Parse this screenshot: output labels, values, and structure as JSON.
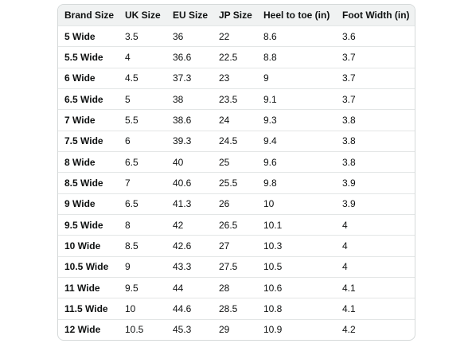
{
  "table": {
    "headers": [
      "Brand Size",
      "UK Size",
      "EU Size",
      "JP Size",
      "Heel to toe (in)",
      "Foot Width (in)"
    ],
    "rows": [
      [
        "5 Wide",
        "3.5",
        "36",
        "22",
        "8.6",
        "3.6"
      ],
      [
        "5.5 Wide",
        "4",
        "36.6",
        "22.5",
        "8.8",
        "3.7"
      ],
      [
        "6 Wide",
        "4.5",
        "37.3",
        "23",
        "9",
        "3.7"
      ],
      [
        "6.5 Wide",
        "5",
        "38",
        "23.5",
        "9.1",
        "3.7"
      ],
      [
        "7 Wide",
        "5.5",
        "38.6",
        "24",
        "9.3",
        "3.8"
      ],
      [
        "7.5 Wide",
        "6",
        "39.3",
        "24.5",
        "9.4",
        "3.8"
      ],
      [
        "8 Wide",
        "6.5",
        "40",
        "25",
        "9.6",
        "3.8"
      ],
      [
        "8.5 Wide",
        "7",
        "40.6",
        "25.5",
        "9.8",
        "3.9"
      ],
      [
        "9 Wide",
        "6.5",
        "41.3",
        "26",
        "10",
        "3.9"
      ],
      [
        "9.5 Wide",
        "8",
        "42",
        "26.5",
        "10.1",
        "4"
      ],
      [
        "10 Wide",
        "8.5",
        "42.6",
        "27",
        "10.3",
        "4"
      ],
      [
        "10.5 Wide",
        "9",
        "43.3",
        "27.5",
        "10.5",
        "4"
      ],
      [
        "11 Wide",
        "9.5",
        "44",
        "28",
        "10.6",
        "4.1"
      ],
      [
        "11.5 Wide",
        "10",
        "44.6",
        "28.5",
        "10.8",
        "4.1"
      ],
      [
        "12 Wide",
        "10.5",
        "45.3",
        "29",
        "10.9",
        "4.2"
      ]
    ]
  }
}
